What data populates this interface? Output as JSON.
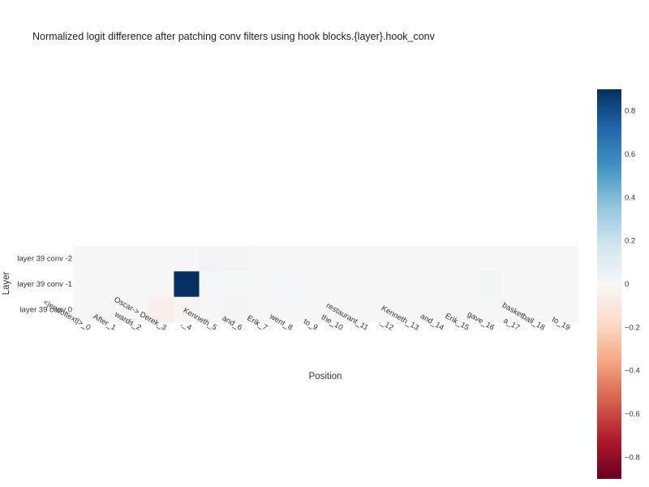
{
  "chart_data": {
    "type": "heatmap",
    "title": "Normalized logit difference after patching conv filters using hook blocks.{layer}.hook_conv",
    "xlabel": "Position",
    "ylabel": "Layer",
    "x_categories": [
      "<|endoftext|>_0",
      "After_1",
      "wards_2",
      "Oscar-> Derek_3",
      ",_4",
      "Kenneth_5",
      "and_6",
      "Erik_7",
      "went_8",
      "to_9",
      "the_10",
      "restaurant_11",
      "._12",
      "Kenneth_13",
      "and_14",
      "Erik_15",
      "gave_16",
      "a_17",
      "basketball_18",
      "to_19"
    ],
    "y_categories": [
      "layer 39 conv -2",
      "layer 39 conv -1",
      "layer 39 conv 0"
    ],
    "z": [
      [
        0,
        0,
        0,
        0,
        0,
        0.03,
        -0.01,
        0,
        -0.005,
        0,
        0,
        0,
        0,
        0,
        0,
        0,
        0,
        0,
        0,
        0
      ],
      [
        0,
        0,
        0,
        0,
        0.9,
        0.01,
        0.005,
        0,
        0.01,
        0,
        0,
        0,
        0,
        0,
        0,
        0,
        0.015,
        0,
        0,
        0
      ],
      [
        0,
        0,
        0,
        -0.05,
        -0.01,
        0,
        -0.01,
        0,
        0,
        0,
        0,
        0,
        0,
        0,
        0,
        0,
        0,
        0,
        0,
        0
      ]
    ],
    "zrange": [
      -0.9,
      0.9
    ],
    "colorscale": "RdBu",
    "colorbar_ticks": [
      0.8,
      0.6,
      0.4,
      0.2,
      0,
      -0.2,
      -0.4,
      -0.6,
      -0.8
    ],
    "colorbar_tick_labels": [
      "0.8",
      "0.6",
      "0.4",
      "0.2",
      "0",
      "−0.2",
      "−0.4",
      "−0.6",
      "−0.8"
    ],
    "grid": false
  }
}
